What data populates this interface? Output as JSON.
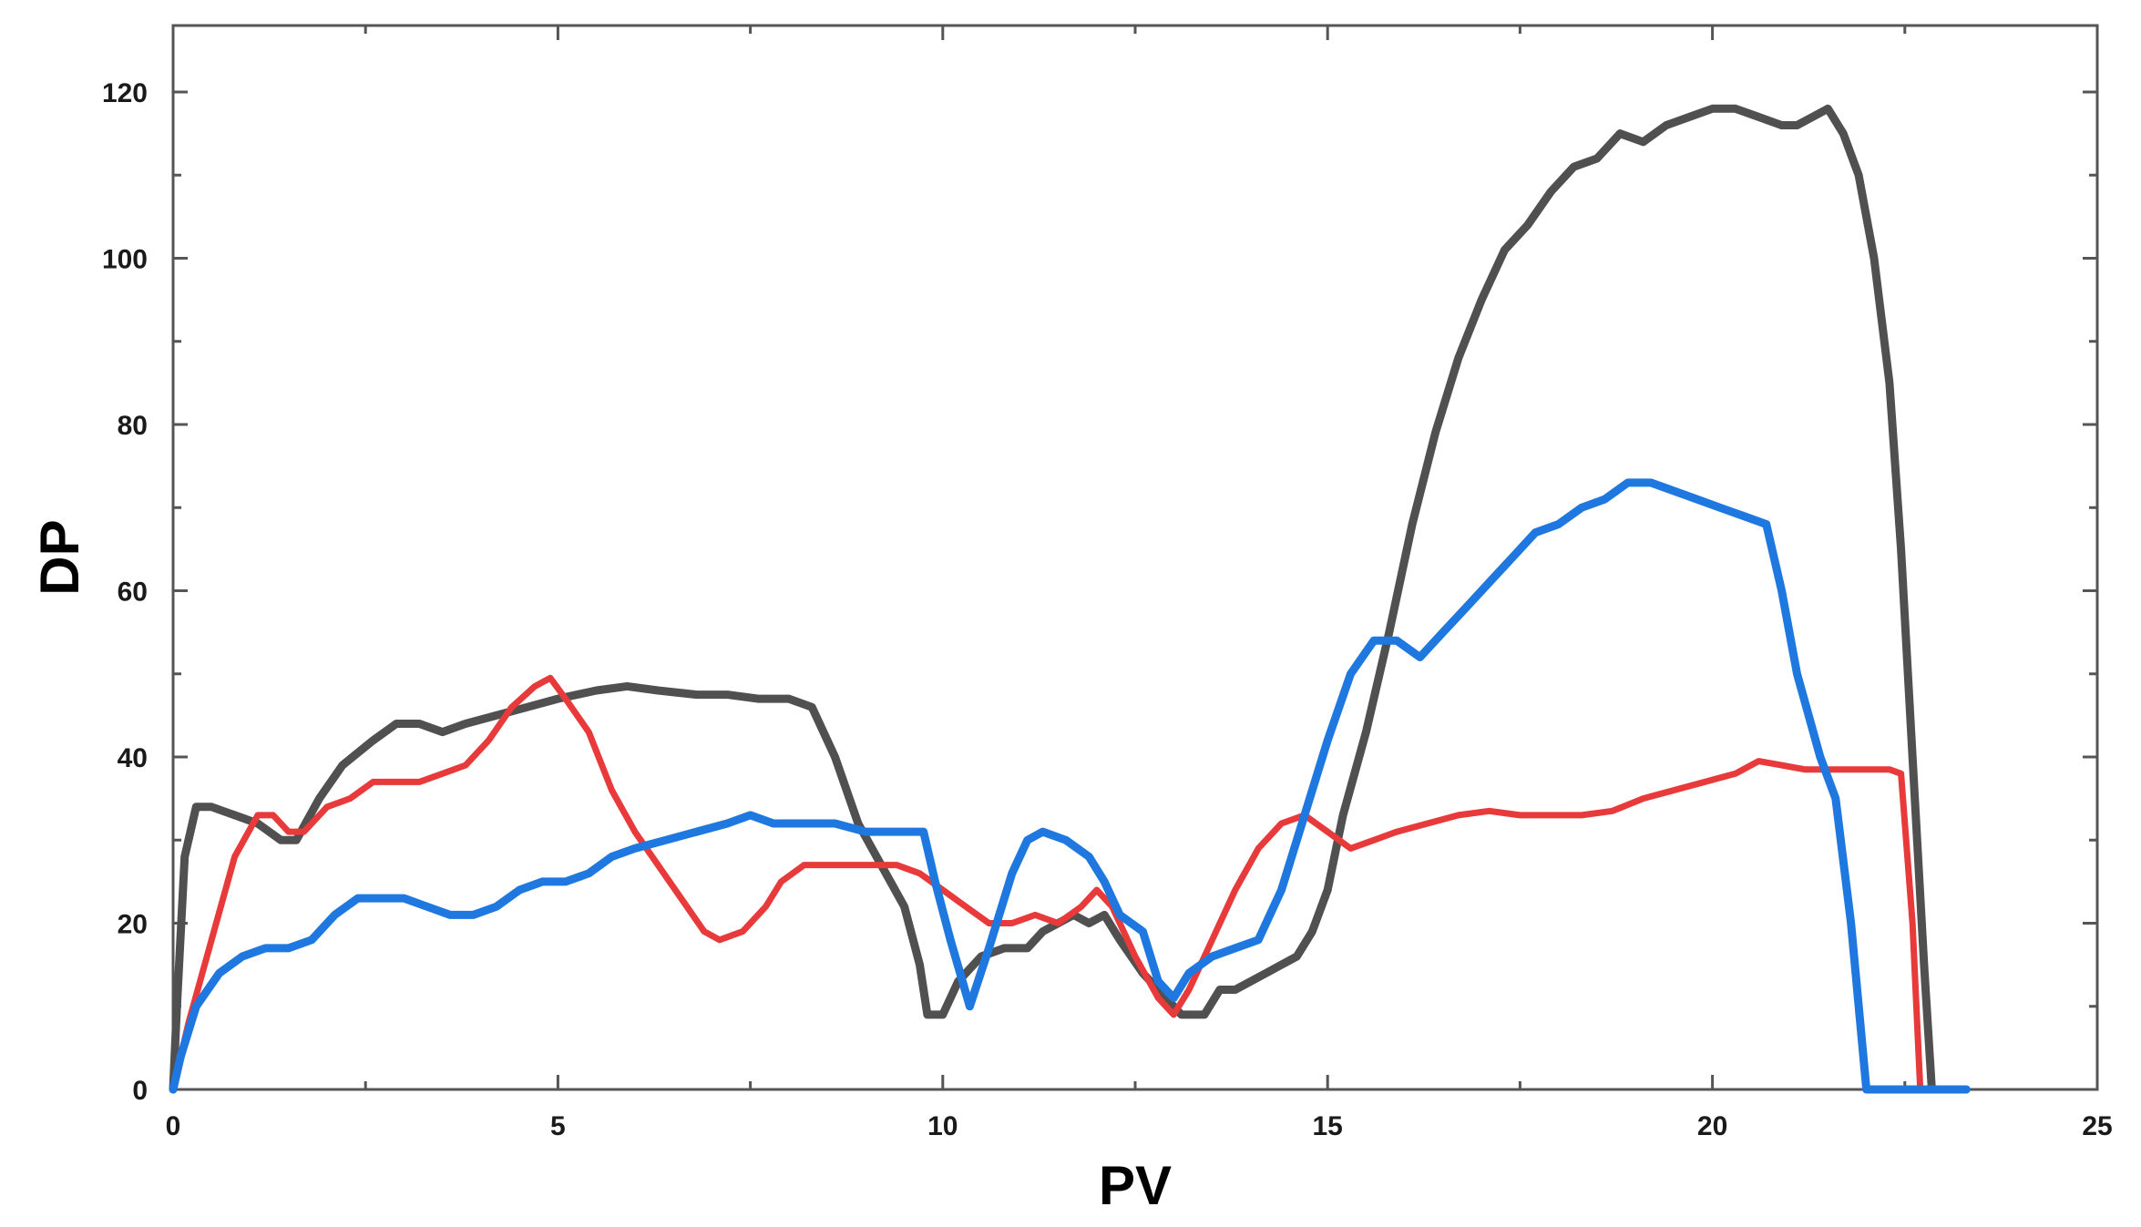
{
  "chart_data": {
    "type": "line",
    "title": "",
    "xlabel": "PV",
    "ylabel": "DP",
    "xlim": [
      0,
      25
    ],
    "ylim": [
      0,
      128
    ],
    "xticks": [
      0,
      5,
      10,
      15,
      20,
      25
    ],
    "yticks": [
      0,
      20,
      40,
      60,
      80,
      100,
      120
    ],
    "xtick_labels": [
      "0",
      "5",
      "10",
      "15",
      "20",
      "25"
    ],
    "ytick_labels": [
      "0",
      "20",
      "40",
      "60",
      "80",
      "100",
      "120"
    ],
    "grid": false,
    "legend": "none",
    "series": [
      {
        "color": "#505050",
        "width": 9,
        "points": [
          [
            0.0,
            0
          ],
          [
            0.05,
            10
          ],
          [
            0.15,
            28
          ],
          [
            0.3,
            34
          ],
          [
            0.5,
            34
          ],
          [
            0.8,
            33
          ],
          [
            1.1,
            32
          ],
          [
            1.4,
            30
          ],
          [
            1.6,
            30
          ],
          [
            1.9,
            35
          ],
          [
            2.2,
            39
          ],
          [
            2.6,
            42
          ],
          [
            2.9,
            44
          ],
          [
            3.2,
            44
          ],
          [
            3.5,
            43
          ],
          [
            3.8,
            44
          ],
          [
            4.2,
            45
          ],
          [
            4.6,
            46
          ],
          [
            5.0,
            47
          ],
          [
            5.5,
            48
          ],
          [
            5.9,
            48.5
          ],
          [
            6.3,
            48
          ],
          [
            6.8,
            47.5
          ],
          [
            7.2,
            47.5
          ],
          [
            7.6,
            47
          ],
          [
            8.0,
            47
          ],
          [
            8.3,
            46
          ],
          [
            8.6,
            40
          ],
          [
            8.9,
            32
          ],
          [
            9.2,
            27
          ],
          [
            9.5,
            22
          ],
          [
            9.7,
            15
          ],
          [
            9.8,
            9
          ],
          [
            10.0,
            9
          ],
          [
            10.2,
            13
          ],
          [
            10.5,
            16
          ],
          [
            10.8,
            17
          ],
          [
            11.1,
            17
          ],
          [
            11.3,
            19
          ],
          [
            11.5,
            20
          ],
          [
            11.7,
            21
          ],
          [
            11.9,
            20
          ],
          [
            12.1,
            21
          ],
          [
            12.3,
            18
          ],
          [
            12.6,
            14
          ],
          [
            12.9,
            11
          ],
          [
            13.1,
            9
          ],
          [
            13.4,
            9
          ],
          [
            13.6,
            12
          ],
          [
            13.8,
            12
          ],
          [
            14.2,
            14
          ],
          [
            14.6,
            16
          ],
          [
            14.8,
            19
          ],
          [
            15.0,
            24
          ],
          [
            15.2,
            33
          ],
          [
            15.5,
            43
          ],
          [
            15.8,
            55
          ],
          [
            16.1,
            68
          ],
          [
            16.4,
            79
          ],
          [
            16.7,
            88
          ],
          [
            17.0,
            95
          ],
          [
            17.3,
            101
          ],
          [
            17.6,
            104
          ],
          [
            17.9,
            108
          ],
          [
            18.2,
            111
          ],
          [
            18.5,
            112
          ],
          [
            18.8,
            115
          ],
          [
            19.1,
            114
          ],
          [
            19.4,
            116
          ],
          [
            19.7,
            117
          ],
          [
            20.0,
            118
          ],
          [
            20.3,
            118
          ],
          [
            20.6,
            117
          ],
          [
            20.9,
            116
          ],
          [
            21.1,
            116
          ],
          [
            21.3,
            117
          ],
          [
            21.5,
            118
          ],
          [
            21.7,
            115
          ],
          [
            21.9,
            110
          ],
          [
            22.1,
            100
          ],
          [
            22.3,
            85
          ],
          [
            22.45,
            65
          ],
          [
            22.6,
            40
          ],
          [
            22.75,
            15
          ],
          [
            22.85,
            0
          ]
        ]
      },
      {
        "color": "#e83a3a",
        "width": 7,
        "points": [
          [
            0.0,
            0
          ],
          [
            0.2,
            8
          ],
          [
            0.5,
            18
          ],
          [
            0.8,
            28
          ],
          [
            1.1,
            33
          ],
          [
            1.3,
            33
          ],
          [
            1.5,
            31
          ],
          [
            1.7,
            31
          ],
          [
            2.0,
            34
          ],
          [
            2.3,
            35
          ],
          [
            2.6,
            37
          ],
          [
            2.9,
            37
          ],
          [
            3.2,
            37
          ],
          [
            3.5,
            38
          ],
          [
            3.8,
            39
          ],
          [
            4.1,
            42
          ],
          [
            4.4,
            46
          ],
          [
            4.7,
            48.5
          ],
          [
            4.9,
            49.5
          ],
          [
            5.1,
            47
          ],
          [
            5.4,
            43
          ],
          [
            5.7,
            36
          ],
          [
            6.0,
            31
          ],
          [
            6.3,
            27
          ],
          [
            6.6,
            23
          ],
          [
            6.9,
            19
          ],
          [
            7.1,
            18
          ],
          [
            7.4,
            19
          ],
          [
            7.7,
            22
          ],
          [
            7.9,
            25
          ],
          [
            8.2,
            27
          ],
          [
            8.6,
            27
          ],
          [
            9.0,
            27
          ],
          [
            9.4,
            27
          ],
          [
            9.7,
            26
          ],
          [
            10.0,
            24
          ],
          [
            10.3,
            22
          ],
          [
            10.6,
            20
          ],
          [
            10.9,
            20
          ],
          [
            11.2,
            21
          ],
          [
            11.5,
            20
          ],
          [
            11.8,
            22
          ],
          [
            12.0,
            24
          ],
          [
            12.2,
            22
          ],
          [
            12.5,
            16
          ],
          [
            12.8,
            11
          ],
          [
            13.0,
            9
          ],
          [
            13.2,
            12
          ],
          [
            13.5,
            18
          ],
          [
            13.8,
            24
          ],
          [
            14.1,
            29
          ],
          [
            14.4,
            32
          ],
          [
            14.7,
            33
          ],
          [
            15.0,
            31
          ],
          [
            15.3,
            29
          ],
          [
            15.6,
            30
          ],
          [
            15.9,
            31
          ],
          [
            16.3,
            32
          ],
          [
            16.7,
            33
          ],
          [
            17.1,
            33.5
          ],
          [
            17.5,
            33
          ],
          [
            17.9,
            33
          ],
          [
            18.3,
            33
          ],
          [
            18.7,
            33.5
          ],
          [
            19.1,
            35
          ],
          [
            19.5,
            36
          ],
          [
            19.9,
            37
          ],
          [
            20.3,
            38
          ],
          [
            20.6,
            39.5
          ],
          [
            20.9,
            39
          ],
          [
            21.2,
            38.5
          ],
          [
            21.6,
            38.5
          ],
          [
            22.0,
            38.5
          ],
          [
            22.3,
            38.5
          ],
          [
            22.45,
            38
          ],
          [
            22.6,
            20
          ],
          [
            22.7,
            0
          ]
        ]
      },
      {
        "color": "#1e78e0",
        "width": 9,
        "points": [
          [
            0.0,
            0
          ],
          [
            0.1,
            4
          ],
          [
            0.3,
            10
          ],
          [
            0.6,
            14
          ],
          [
            0.9,
            16
          ],
          [
            1.2,
            17
          ],
          [
            1.5,
            17
          ],
          [
            1.8,
            18
          ],
          [
            2.1,
            21
          ],
          [
            2.4,
            23
          ],
          [
            2.7,
            23
          ],
          [
            3.0,
            23
          ],
          [
            3.3,
            22
          ],
          [
            3.6,
            21
          ],
          [
            3.9,
            21
          ],
          [
            4.2,
            22
          ],
          [
            4.5,
            24
          ],
          [
            4.8,
            25
          ],
          [
            5.1,
            25
          ],
          [
            5.4,
            26
          ],
          [
            5.7,
            28
          ],
          [
            6.0,
            29
          ],
          [
            6.4,
            30
          ],
          [
            6.8,
            31
          ],
          [
            7.2,
            32
          ],
          [
            7.5,
            33
          ],
          [
            7.8,
            32
          ],
          [
            8.2,
            32
          ],
          [
            8.6,
            32
          ],
          [
            9.0,
            31
          ],
          [
            9.4,
            31
          ],
          [
            9.75,
            31
          ],
          [
            9.9,
            25
          ],
          [
            10.1,
            18
          ],
          [
            10.35,
            10
          ],
          [
            10.6,
            17
          ],
          [
            10.9,
            26
          ],
          [
            11.1,
            30
          ],
          [
            11.3,
            31
          ],
          [
            11.6,
            30
          ],
          [
            11.9,
            28
          ],
          [
            12.1,
            25
          ],
          [
            12.3,
            21
          ],
          [
            12.6,
            19
          ],
          [
            12.8,
            13
          ],
          [
            13.0,
            11
          ],
          [
            13.2,
            14
          ],
          [
            13.5,
            16
          ],
          [
            13.8,
            17
          ],
          [
            14.1,
            18
          ],
          [
            14.4,
            24
          ],
          [
            14.7,
            33
          ],
          [
            15.0,
            42
          ],
          [
            15.3,
            50
          ],
          [
            15.6,
            54
          ],
          [
            15.9,
            54
          ],
          [
            16.2,
            52
          ],
          [
            16.5,
            55
          ],
          [
            16.8,
            58
          ],
          [
            17.1,
            61
          ],
          [
            17.4,
            64
          ],
          [
            17.7,
            67
          ],
          [
            18.0,
            68
          ],
          [
            18.3,
            70
          ],
          [
            18.6,
            71
          ],
          [
            18.9,
            73
          ],
          [
            19.2,
            73
          ],
          [
            19.5,
            72
          ],
          [
            19.8,
            71
          ],
          [
            20.1,
            70
          ],
          [
            20.4,
            69
          ],
          [
            20.7,
            68
          ],
          [
            20.9,
            60
          ],
          [
            21.1,
            50
          ],
          [
            21.4,
            40
          ],
          [
            21.6,
            35
          ],
          [
            21.8,
            20
          ],
          [
            22.0,
            0
          ],
          [
            22.3,
            0
          ],
          [
            22.8,
            0
          ],
          [
            23.3,
            0
          ]
        ]
      }
    ]
  }
}
